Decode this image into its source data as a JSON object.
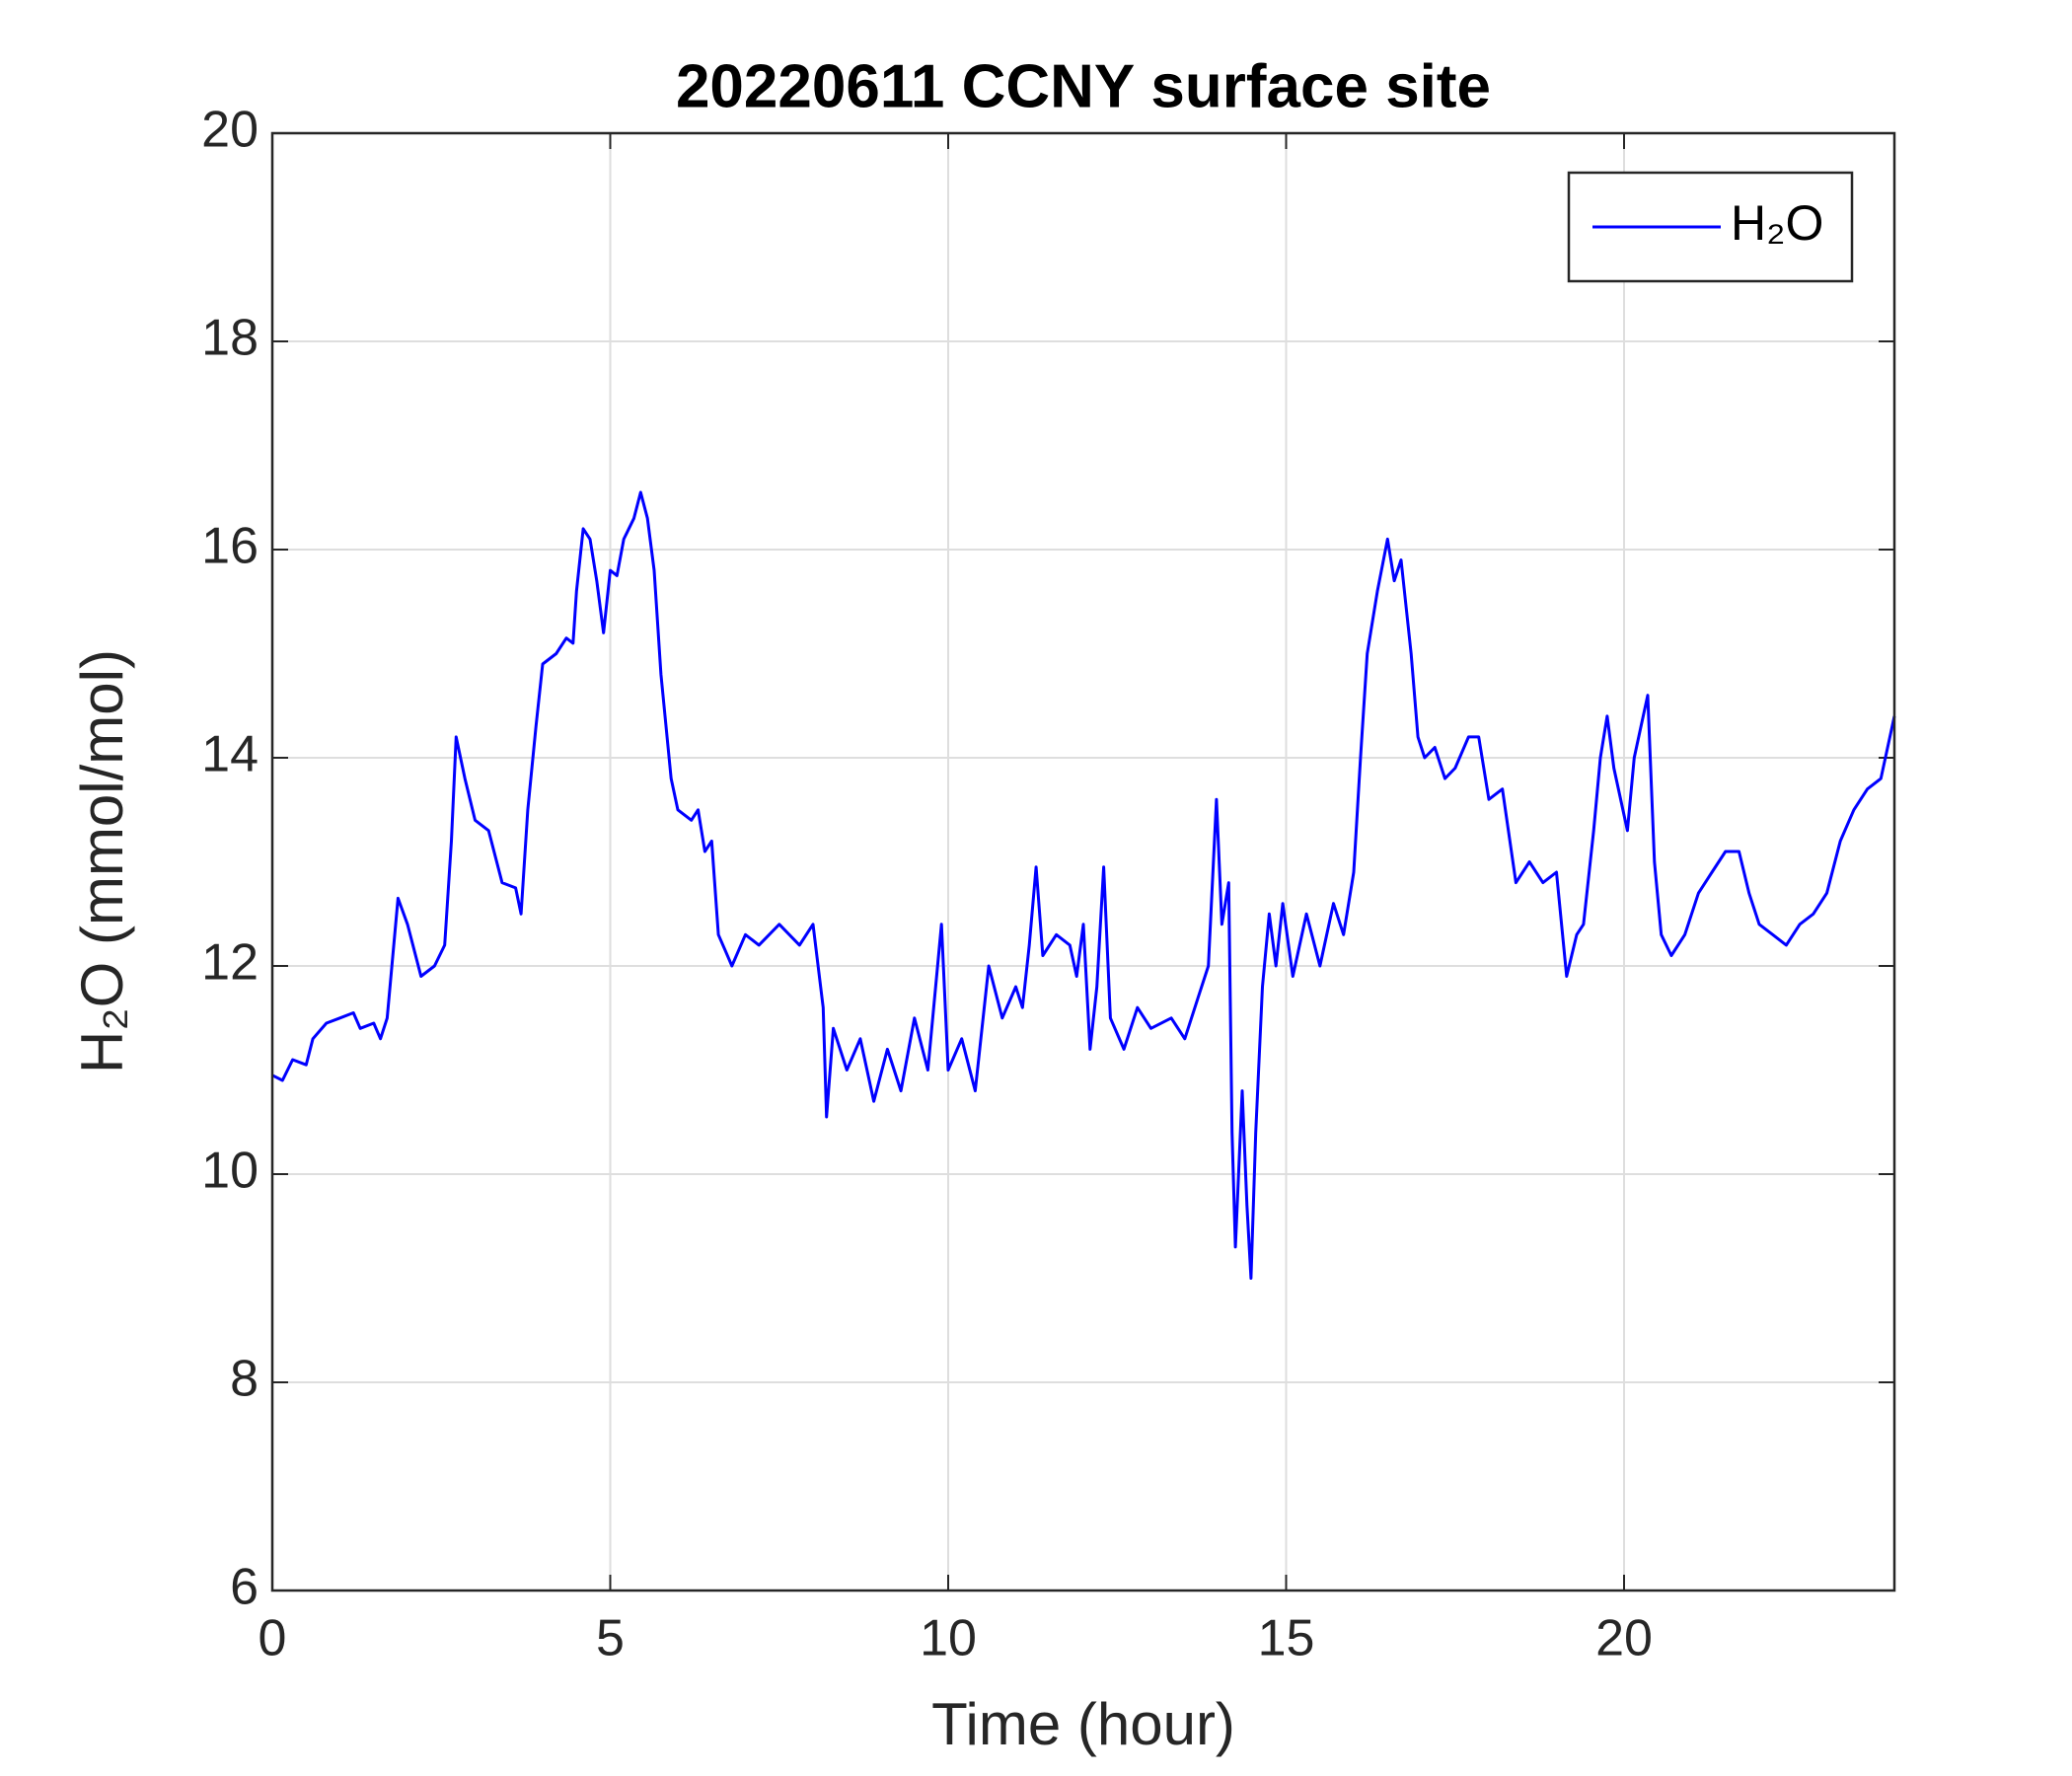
{
  "chart_data": {
    "type": "line",
    "title": "20220611 CCNY surface site",
    "xlabel": "Time (hour)",
    "ylabel": "H₂O (mmol/mol)",
    "x": [
      0,
      0.15,
      0.3,
      0.5,
      0.6,
      0.8,
      1.0,
      1.2,
      1.3,
      1.5,
      1.6,
      1.7,
      1.86,
      2.0,
      2.2,
      2.4,
      2.55,
      2.65,
      2.72,
      2.85,
      3.0,
      3.2,
      3.4,
      3.6,
      3.68,
      3.78,
      3.9,
      4.0,
      4.2,
      4.35,
      4.45,
      4.5,
      4.6,
      4.7,
      4.8,
      4.9,
      5.0,
      5.1,
      5.2,
      5.35,
      5.45,
      5.55,
      5.65,
      5.75,
      5.9,
      6.0,
      6.2,
      6.3,
      6.4,
      6.5,
      6.6,
      6.7,
      6.8,
      7.0,
      7.2,
      7.5,
      7.8,
      8.0,
      8.15,
      8.2,
      8.3,
      8.5,
      8.7,
      8.9,
      9.1,
      9.3,
      9.5,
      9.7,
      9.9,
      10.0,
      10.2,
      10.4,
      10.6,
      10.8,
      11.0,
      11.1,
      11.2,
      11.3,
      11.4,
      11.6,
      11.8,
      11.9,
      12.0,
      12.1,
      12.2,
      12.3,
      12.4,
      12.6,
      12.8,
      13.0,
      13.3,
      13.5,
      13.7,
      13.85,
      13.97,
      14.05,
      14.15,
      14.2,
      14.25,
      14.35,
      14.42,
      14.48,
      14.55,
      14.65,
      14.75,
      14.85,
      14.95,
      15.1,
      15.3,
      15.5,
      15.7,
      15.85,
      16.0,
      16.1,
      16.2,
      16.35,
      16.5,
      16.6,
      16.7,
      16.85,
      16.95,
      17.05,
      17.2,
      17.35,
      17.5,
      17.7,
      17.85,
      18.0,
      18.2,
      18.4,
      18.6,
      18.8,
      19.0,
      19.15,
      19.3,
      19.4,
      19.55,
      19.65,
      19.75,
      19.85,
      20.05,
      20.15,
      20.25,
      20.35,
      20.45,
      20.55,
      20.7,
      20.9,
      21.1,
      21.3,
      21.5,
      21.7,
      21.85,
      22.0,
      22.2,
      22.4,
      22.6,
      22.8,
      23.0,
      23.2,
      23.4,
      23.6,
      23.8,
      24.0
    ],
    "series": [
      {
        "name": "H₂O",
        "color": "#0000ff",
        "values": [
          10.95,
          10.9,
          11.1,
          11.05,
          11.3,
          11.45,
          11.5,
          11.55,
          11.4,
          11.45,
          11.3,
          11.5,
          12.65,
          12.4,
          11.9,
          12.0,
          12.2,
          13.2,
          14.2,
          13.8,
          13.4,
          13.3,
          12.8,
          12.75,
          12.5,
          13.5,
          14.3,
          14.9,
          15.0,
          15.15,
          15.1,
          15.6,
          16.2,
          16.1,
          15.7,
          15.2,
          15.8,
          15.75,
          16.1,
          16.3,
          16.55,
          16.3,
          15.8,
          14.8,
          13.8,
          13.5,
          13.4,
          13.5,
          13.1,
          13.2,
          12.3,
          12.15,
          12.0,
          12.3,
          12.2,
          12.4,
          12.2,
          12.4,
          11.6,
          10.55,
          11.4,
          11.0,
          11.3,
          10.7,
          11.2,
          10.8,
          11.5,
          11.0,
          12.4,
          11.0,
          11.3,
          10.8,
          12.0,
          11.5,
          11.8,
          11.6,
          12.2,
          12.95,
          12.1,
          12.3,
          12.2,
          11.9,
          12.4,
          11.2,
          11.8,
          12.95,
          11.5,
          11.2,
          11.6,
          11.4,
          11.5,
          11.3,
          11.7,
          12.0,
          13.6,
          12.4,
          12.8,
          10.4,
          9.3,
          10.8,
          9.7,
          9.0,
          10.4,
          11.8,
          12.5,
          12.0,
          12.6,
          11.9,
          12.5,
          12.0,
          12.6,
          12.3,
          12.9,
          14.0,
          15.0,
          15.6,
          16.1,
          15.7,
          15.9,
          15.0,
          14.2,
          14.0,
          14.1,
          13.8,
          13.9,
          14.2,
          14.2,
          13.6,
          13.7,
          12.8,
          13.0,
          12.8,
          12.9,
          11.9,
          12.3,
          12.4,
          13.3,
          14.0,
          14.4,
          13.9,
          13.3,
          14.0,
          14.3,
          14.6,
          13.0,
          12.3,
          12.1,
          12.3,
          12.7,
          12.9,
          13.1,
          13.1,
          12.7,
          12.4,
          12.3,
          12.2,
          12.4,
          12.5,
          12.7,
          13.2,
          13.5,
          13.7,
          13.8,
          14.4
        ]
      }
    ],
    "xlim": [
      0,
      24
    ],
    "xticks": [
      0,
      5,
      10,
      15,
      20
    ],
    "ylim": [
      6,
      20
    ],
    "yticks": [
      6,
      8,
      10,
      12,
      14,
      16,
      18,
      20
    ],
    "grid": true,
    "legend": "upper right"
  }
}
